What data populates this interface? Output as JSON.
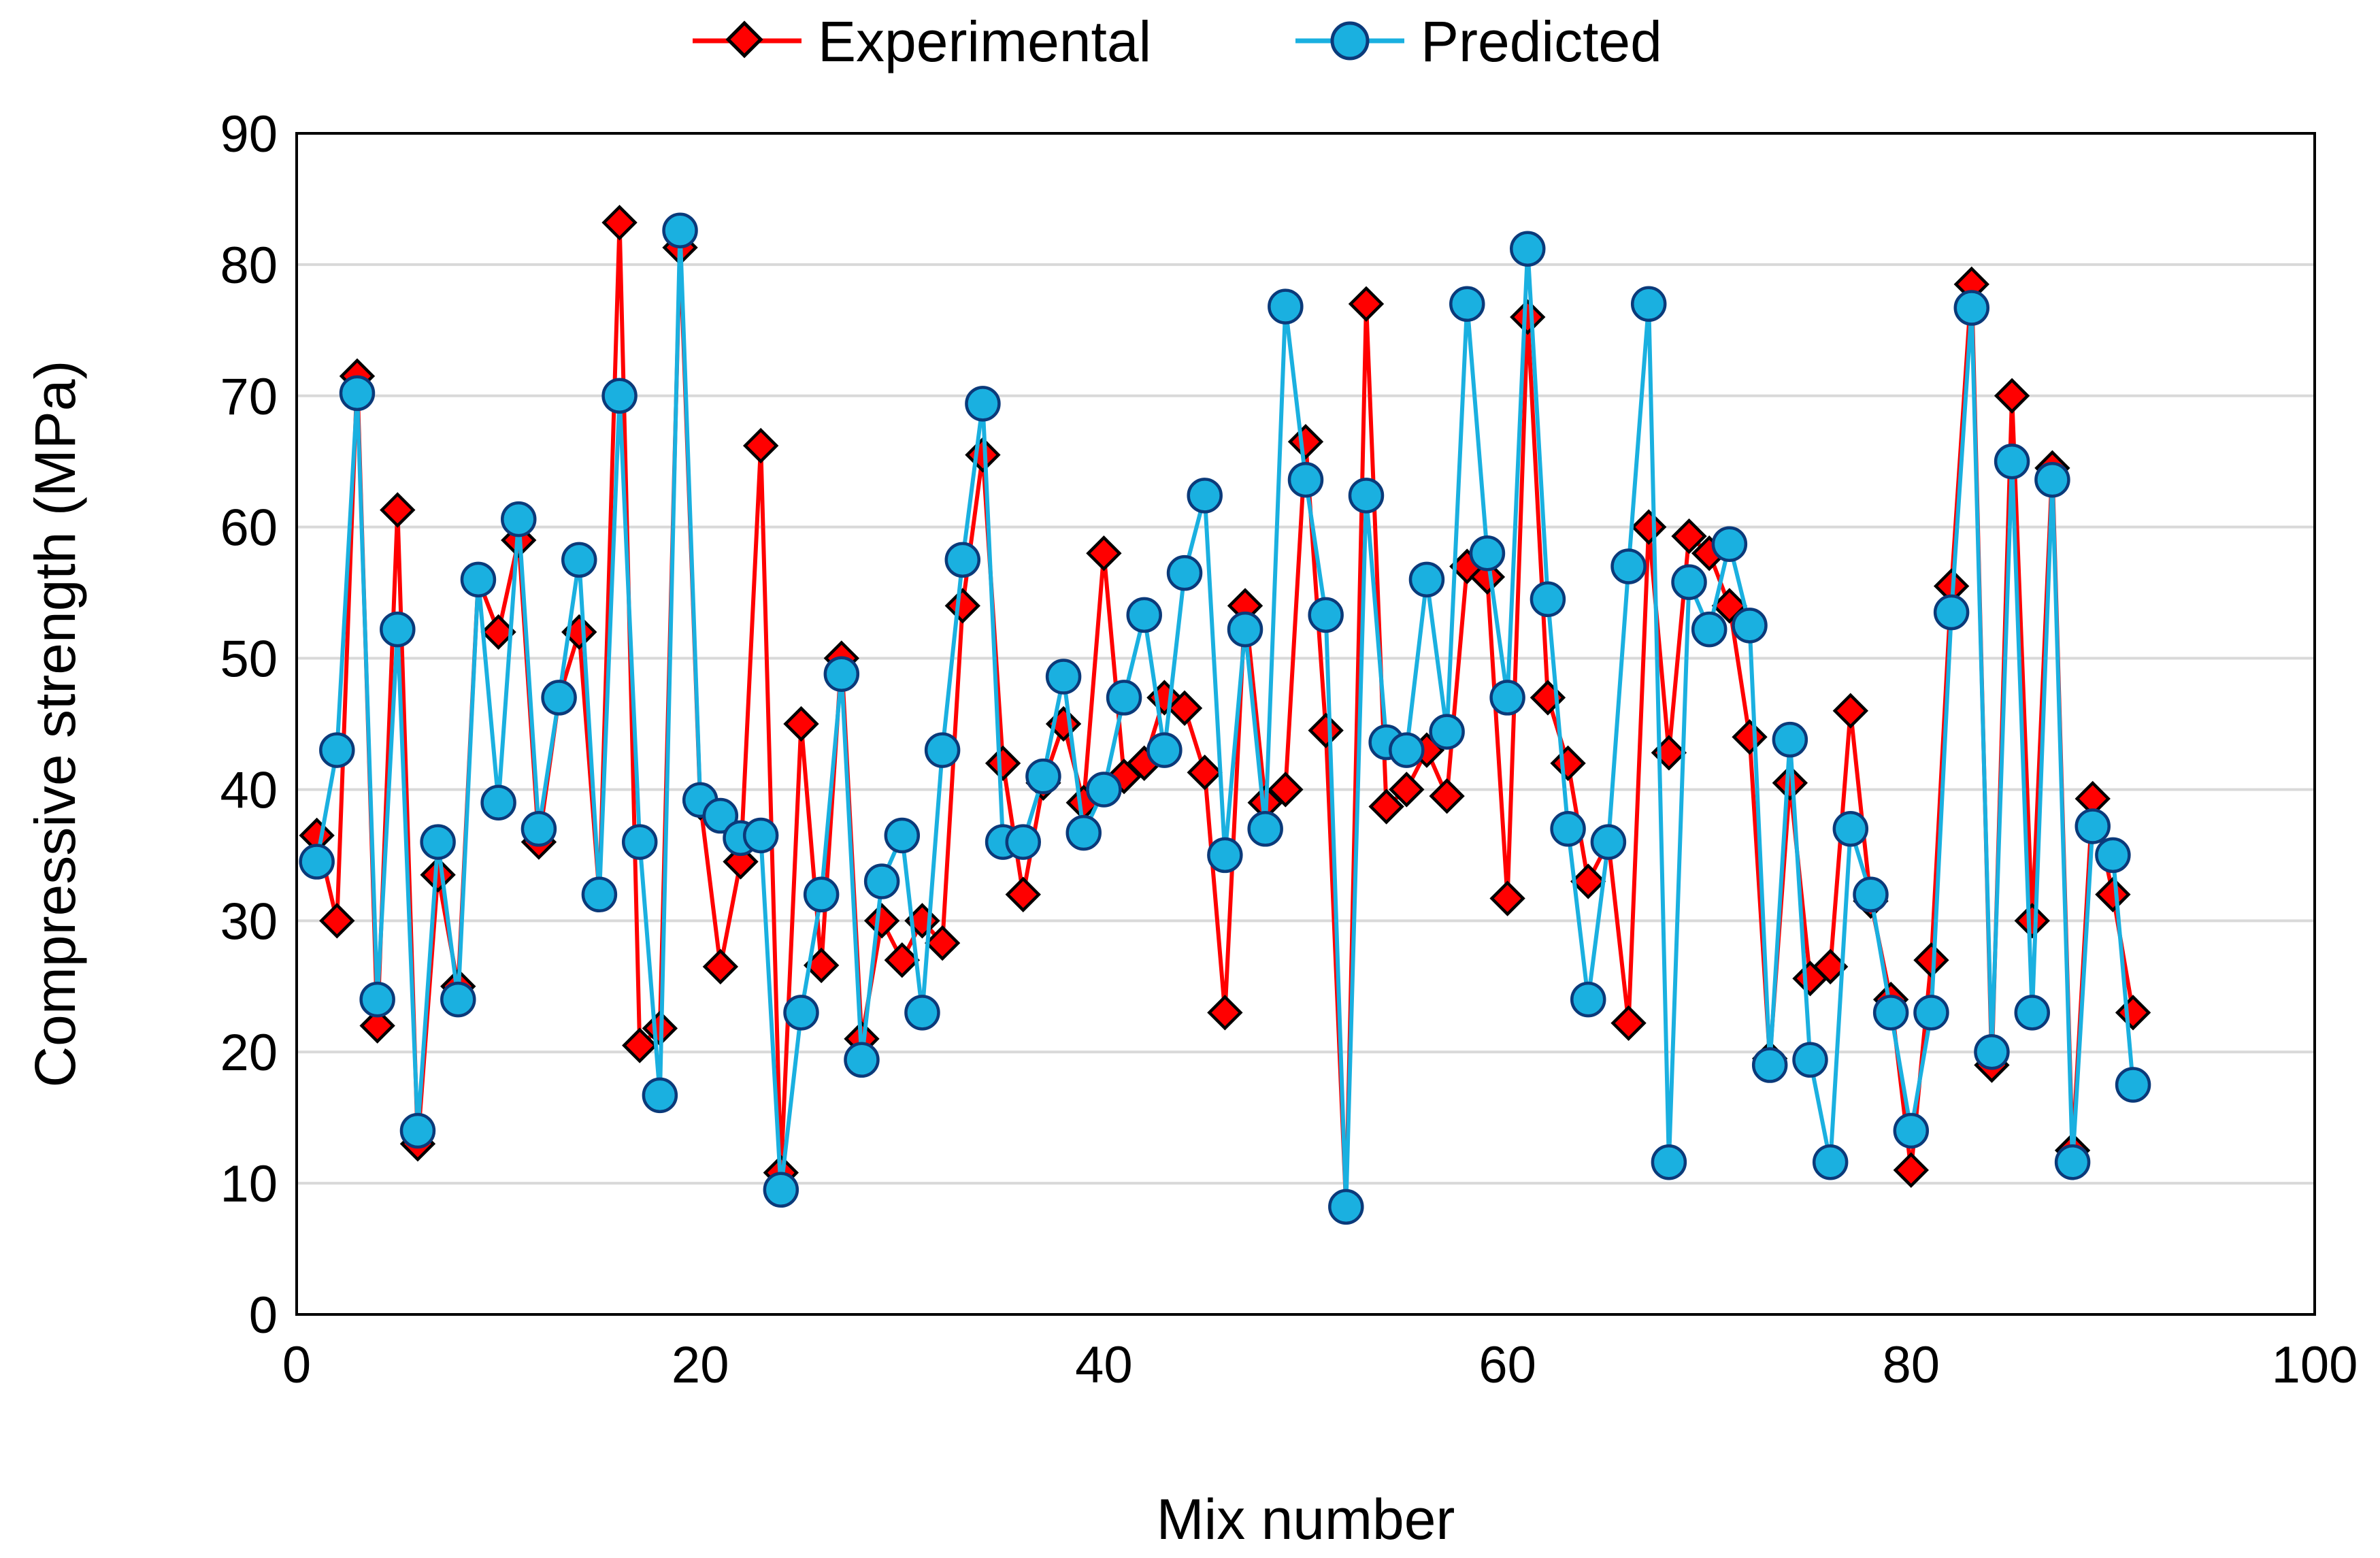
{
  "chart_data": {
    "type": "line",
    "title": "",
    "xlabel": "Mix number",
    "ylabel": "Compressive strength (MPa)",
    "xlim": [
      0,
      100
    ],
    "ylim": [
      0,
      90
    ],
    "xticks": [
      0,
      20,
      40,
      60,
      80,
      100
    ],
    "yticks": [
      0,
      10,
      20,
      30,
      40,
      50,
      60,
      70,
      80,
      90
    ],
    "grid": "horizontal",
    "legend": "top-center",
    "x": [
      1,
      2,
      3,
      4,
      5,
      6,
      7,
      8,
      9,
      10,
      11,
      12,
      13,
      14,
      15,
      16,
      17,
      18,
      19,
      20,
      21,
      22,
      23,
      24,
      25,
      26,
      27,
      28,
      29,
      30,
      31,
      32,
      33,
      34,
      35,
      36,
      37,
      38,
      39,
      40,
      41,
      42,
      43,
      44,
      45,
      46,
      47,
      48,
      49,
      50,
      51,
      52,
      53,
      54,
      55,
      56,
      57,
      58,
      59,
      60,
      61,
      62,
      63,
      64,
      65,
      66,
      67,
      68,
      69,
      70,
      71,
      72,
      73,
      74,
      75,
      76,
      77,
      78,
      79,
      80,
      81,
      82,
      83,
      84,
      85,
      86,
      87,
      88,
      89,
      90,
      91
    ],
    "series": [
      {
        "name": "Experimental",
        "color": "#ff0000",
        "marker": "diamond",
        "values": [
          36.5,
          30,
          71.5,
          22,
          61.3,
          13,
          33.5,
          25,
          56,
          52,
          59,
          36,
          47,
          52,
          32,
          83.2,
          20.5,
          21.8,
          81.3,
          39,
          26.5,
          34.5,
          66.2,
          10.8,
          45,
          26.6,
          50,
          21,
          30,
          27,
          30,
          28.3,
          54,
          65.5,
          42,
          32,
          40.5,
          45,
          39,
          58,
          41,
          42,
          47,
          46.2,
          41.3,
          23,
          54,
          39,
          40,
          66.5,
          44.5,
          8.3,
          77,
          38.7,
          40,
          43,
          39.5,
          57,
          56.2,
          31.7,
          76,
          47,
          42,
          33,
          36,
          22.2,
          60,
          42.8,
          59.3,
          58,
          54,
          44,
          19.5,
          40.5,
          25.6,
          26.5,
          46,
          31.5,
          24,
          11,
          27,
          55.5,
          78.5,
          19,
          70,
          30,
          64.5,
          12.5,
          39.3,
          32,
          23
        ]
      },
      {
        "name": "Predicted",
        "color": "#1ab0e0",
        "marker": "circle",
        "values": [
          34.5,
          43,
          70.2,
          24,
          52.2,
          14,
          36,
          24,
          56,
          39,
          60.6,
          37,
          47,
          57.5,
          32,
          70,
          36,
          16.7,
          82.6,
          39.2,
          38,
          36.3,
          36.5,
          9.5,
          23,
          32,
          48.8,
          19.4,
          33,
          36.5,
          23,
          43,
          57.5,
          69.4,
          36,
          36,
          41,
          48.6,
          36.7,
          40,
          47,
          53.3,
          43,
          56.5,
          62.4,
          35,
          52.2,
          37,
          76.8,
          63.6,
          53.3,
          8.2,
          62.4,
          43.6,
          43,
          56,
          44.4,
          77,
          58,
          47,
          81.2,
          54.5,
          37,
          24,
          36,
          57,
          77,
          11.6,
          55.8,
          52.2,
          58.7,
          52.5,
          19,
          43.8,
          19.4,
          11.6,
          37,
          32,
          23,
          14,
          23,
          53.5,
          76.7,
          20,
          65,
          23,
          63.6,
          11.6,
          37.2,
          35,
          17.5
        ]
      }
    ]
  }
}
